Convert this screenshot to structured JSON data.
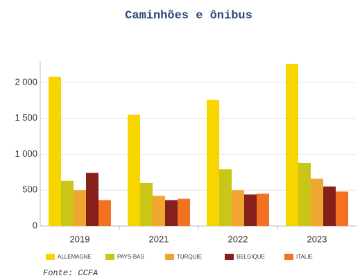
{
  "chart_data": {
    "type": "bar",
    "title": "Caminhões e ônibus",
    "source": "Fonte: CCFA",
    "categories": [
      "2019",
      "2021",
      "2022",
      "2023"
    ],
    "series": [
      {
        "name": "ALLEMAGNE",
        "color": "#f7d600",
        "values": [
          2080,
          1550,
          1760,
          2260
        ]
      },
      {
        "name": "PAYS-BAS",
        "color": "#c9c618",
        "values": [
          630,
          600,
          790,
          880
        ]
      },
      {
        "name": "TURQUIE",
        "color": "#f1a631",
        "values": [
          500,
          420,
          500,
          660
        ]
      },
      {
        "name": "BELGIQUE",
        "color": "#86201a",
        "values": [
          740,
          360,
          440,
          550
        ]
      },
      {
        "name": "ITALIE",
        "color": "#f27221",
        "values": [
          360,
          380,
          450,
          480
        ]
      }
    ],
    "ylim": [
      0,
      2300
    ],
    "yticks": [
      0,
      500,
      {
        "value": 1000,
        "label": "1 000"
      },
      {
        "value": 1500,
        "label": "1 500"
      },
      {
        "value": 2000,
        "label": "2 000"
      }
    ],
    "grid": true
  }
}
